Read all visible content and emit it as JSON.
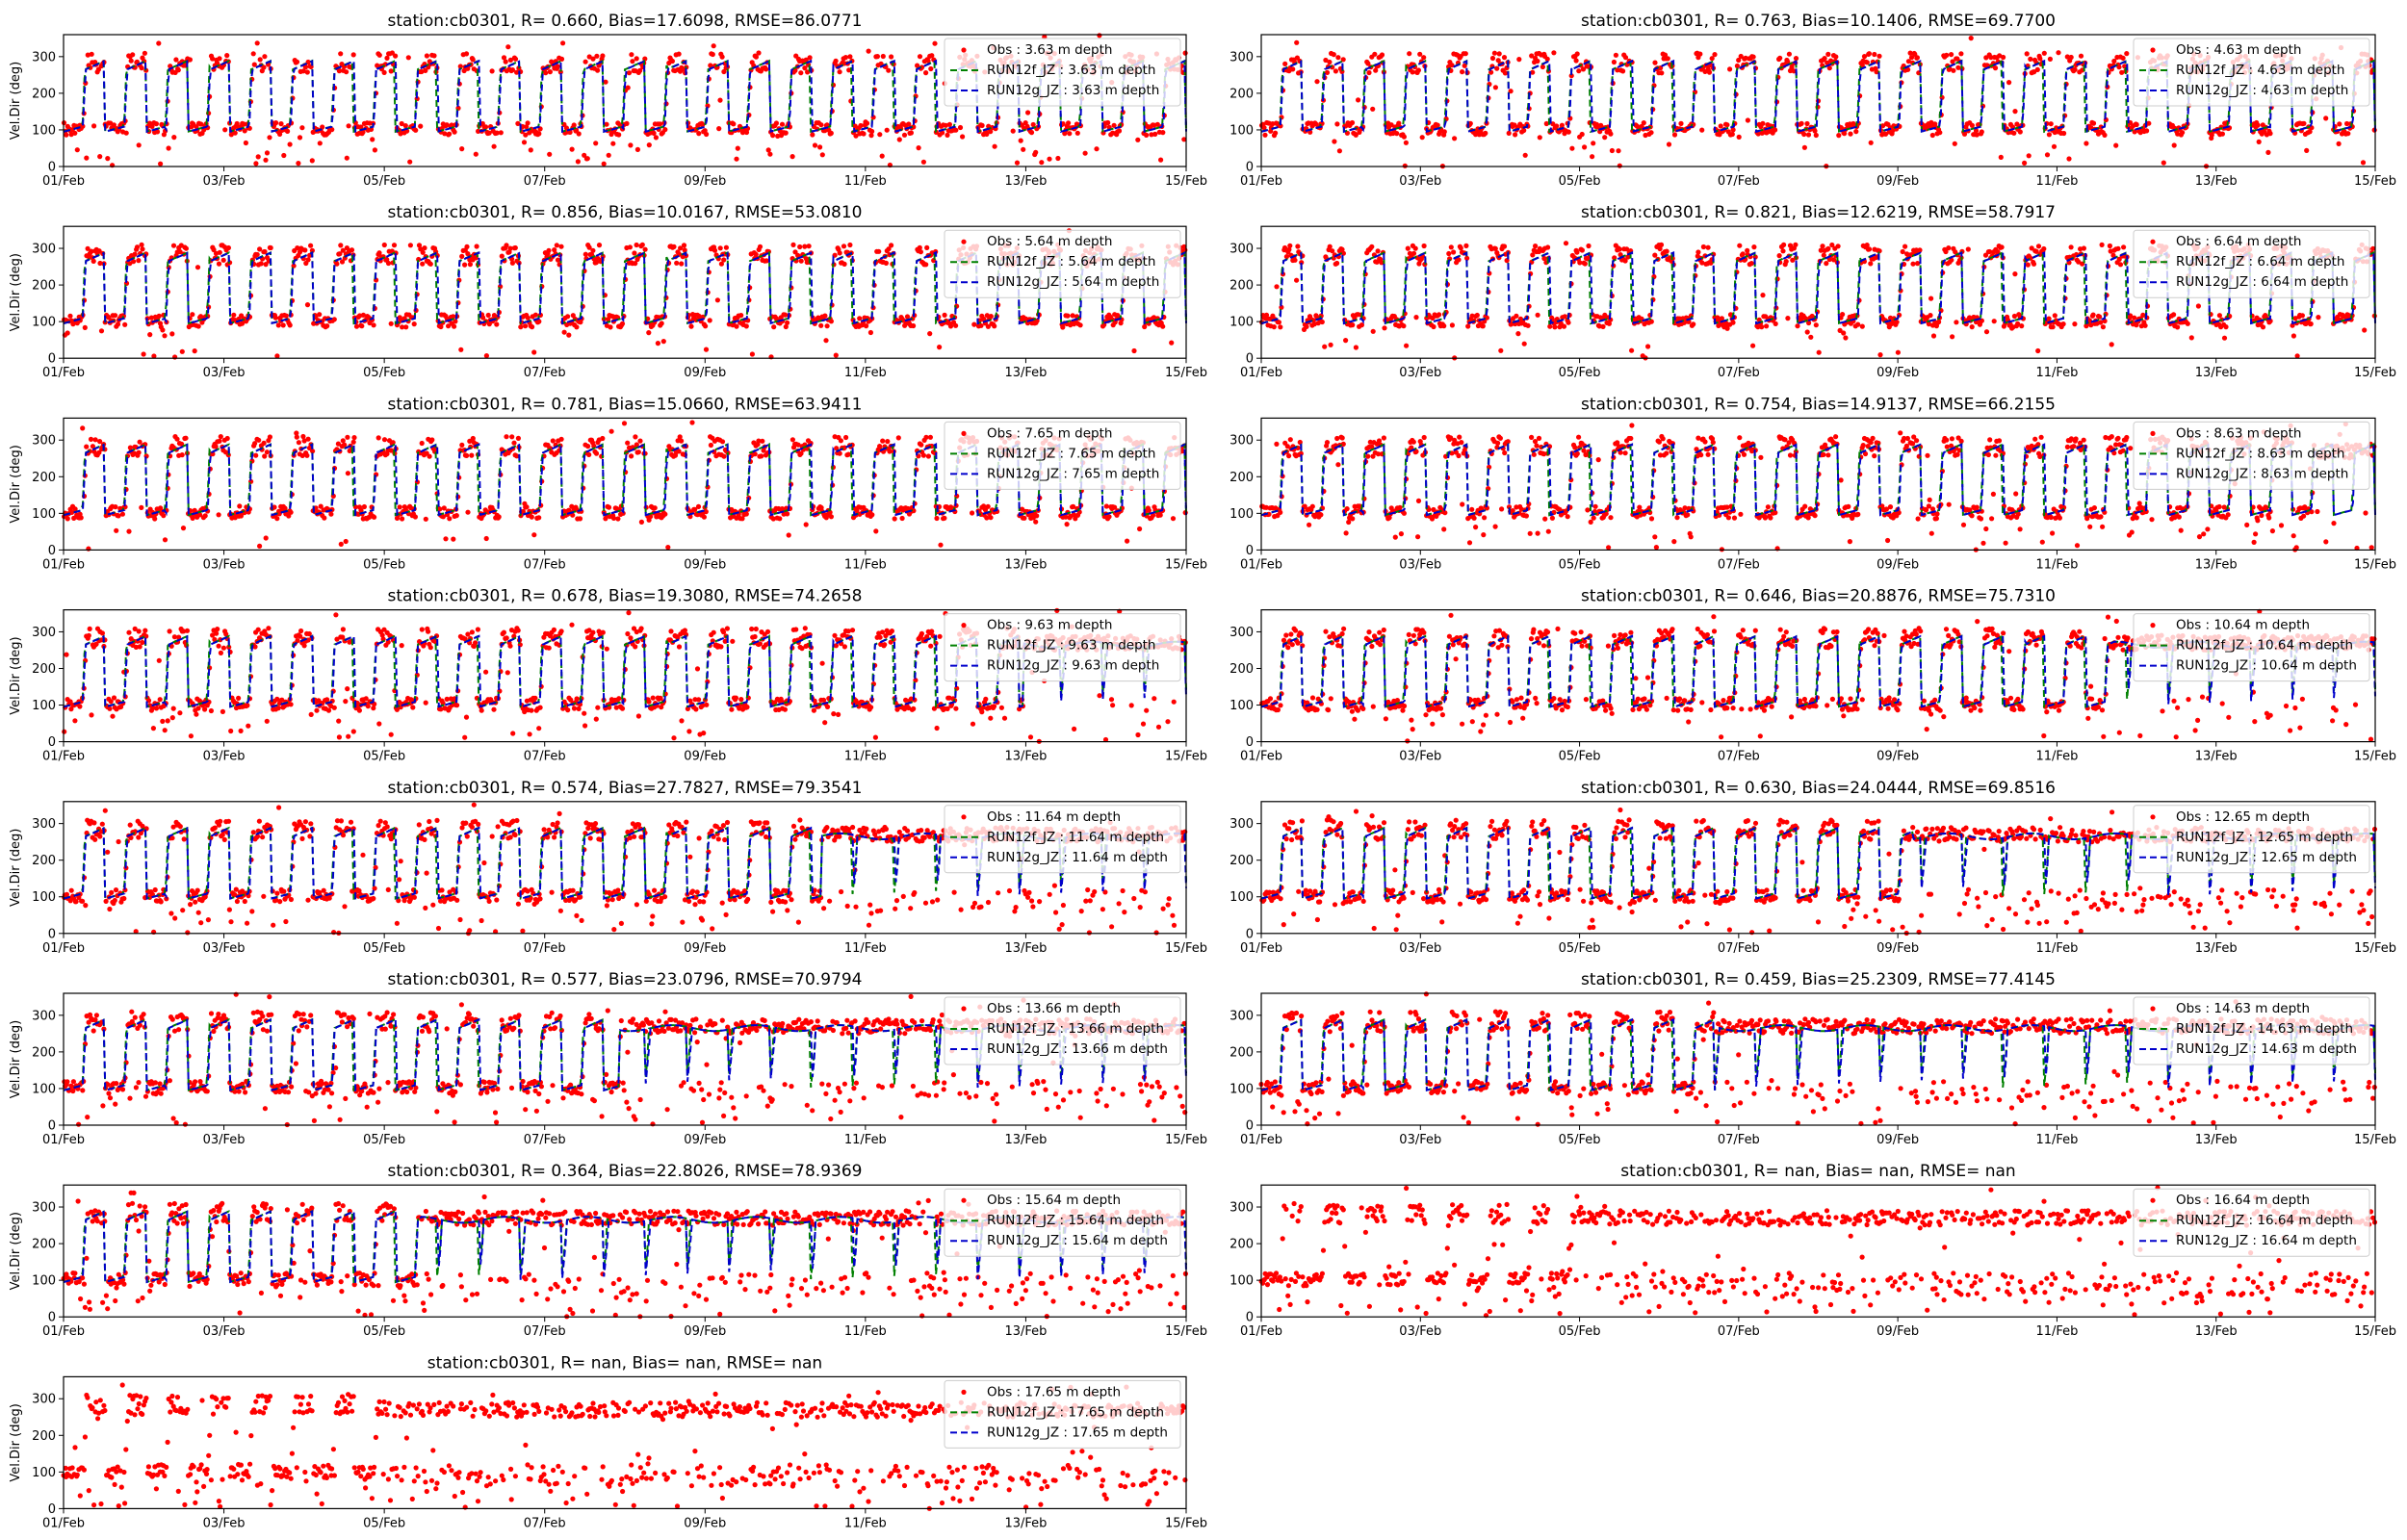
{
  "figure": {
    "ylabel": "Vel.Dir (deg)",
    "colors": {
      "obs": "#ff0000",
      "run12f": "#008000",
      "run12g": "#0000cc"
    }
  },
  "chart_data": [
    {
      "type": "scatter",
      "title": "station:cb0301, R= 0.660, Bias=17.6098, RMSE=86.0771",
      "depth": "3.63",
      "quality": "low",
      "xlabel": "",
      "ylabel": "Vel.Dir (deg)",
      "ylim": [
        0,
        360
      ],
      "yticks": [
        0,
        100,
        200,
        300
      ],
      "xlim": [
        "01/Feb",
        "15/Feb"
      ],
      "xticks": [
        "01/Feb",
        "03/Feb",
        "05/Feb",
        "07/Feb",
        "09/Feb",
        "11/Feb",
        "13/Feb",
        "15/Feb"
      ],
      "legend": {
        "position": "top-right",
        "entries": [
          "Obs : 3.63 m depth",
          "RUN12f_JZ : 3.63 m depth",
          "RUN12g_JZ : 3.63 m depth"
        ]
      },
      "series": [
        {
          "name": "Obs : 3.63 m depth",
          "kind": "points"
        },
        {
          "name": "RUN12f_JZ : 3.63 m depth",
          "kind": "dashed-line"
        },
        {
          "name": "RUN12g_JZ : 3.63 m depth",
          "kind": "dashed-line"
        }
      ]
    },
    {
      "type": "scatter",
      "title": "station:cb0301, R= 0.763, Bias=10.1406, RMSE=69.7700",
      "depth": "4.63",
      "quality": "mid",
      "xlabel": "",
      "ylabel": "",
      "ylim": [
        0,
        360
      ],
      "yticks": [
        0,
        100,
        200,
        300
      ],
      "xlim": [
        "01/Feb",
        "15/Feb"
      ],
      "xticks": [
        "01/Feb",
        "03/Feb",
        "05/Feb",
        "07/Feb",
        "09/Feb",
        "11/Feb",
        "13/Feb",
        "15/Feb"
      ],
      "legend": {
        "position": "top-right",
        "entries": [
          "Obs : 4.63 m depth",
          "RUN12f_JZ : 4.63 m depth",
          "RUN12g_JZ : 4.63 m depth"
        ]
      },
      "series": [
        {
          "name": "Obs : 4.63 m depth",
          "kind": "points"
        },
        {
          "name": "RUN12f_JZ : 4.63 m depth",
          "kind": "dashed-line"
        },
        {
          "name": "RUN12g_JZ : 4.63 m depth",
          "kind": "dashed-line"
        }
      ]
    },
    {
      "type": "scatter",
      "title": "station:cb0301, R= 0.856, Bias=10.0167, RMSE=53.0810",
      "depth": "5.64",
      "quality": "high",
      "xlabel": "",
      "ylabel": "Vel.Dir (deg)",
      "ylim": [
        0,
        360
      ],
      "yticks": [
        0,
        100,
        200,
        300
      ],
      "xlim": [
        "01/Feb",
        "15/Feb"
      ],
      "xticks": [
        "01/Feb",
        "03/Feb",
        "05/Feb",
        "07/Feb",
        "09/Feb",
        "11/Feb",
        "13/Feb",
        "15/Feb"
      ],
      "legend": {
        "position": "top-right",
        "entries": [
          "Obs : 5.64 m depth",
          "RUN12f_JZ : 5.64 m depth",
          "RUN12g_JZ : 5.64 m depth"
        ]
      },
      "series": [
        {
          "name": "Obs : 5.64 m depth",
          "kind": "points"
        },
        {
          "name": "RUN12f_JZ : 5.64 m depth",
          "kind": "dashed-line"
        },
        {
          "name": "RUN12g_JZ : 5.64 m depth",
          "kind": "dashed-line"
        }
      ]
    },
    {
      "type": "scatter",
      "title": "station:cb0301, R= 0.821, Bias=12.6219, RMSE=58.7917",
      "depth": "6.64",
      "quality": "high",
      "xlabel": "",
      "ylabel": "",
      "ylim": [
        0,
        360
      ],
      "yticks": [
        0,
        100,
        200,
        300
      ],
      "xlim": [
        "01/Feb",
        "15/Feb"
      ],
      "xticks": [
        "01/Feb",
        "03/Feb",
        "05/Feb",
        "07/Feb",
        "09/Feb",
        "11/Feb",
        "13/Feb",
        "15/Feb"
      ],
      "legend": {
        "position": "top-right",
        "entries": [
          "Obs : 6.64 m depth",
          "RUN12f_JZ : 6.64 m depth",
          "RUN12g_JZ : 6.64 m depth"
        ]
      },
      "series": [
        {
          "name": "Obs : 6.64 m depth",
          "kind": "points"
        },
        {
          "name": "RUN12f_JZ : 6.64 m depth",
          "kind": "dashed-line"
        },
        {
          "name": "RUN12g_JZ : 6.64 m depth",
          "kind": "dashed-line"
        }
      ]
    },
    {
      "type": "scatter",
      "title": "station:cb0301, R= 0.781, Bias=15.0660, RMSE=63.9411",
      "depth": "7.65",
      "quality": "high",
      "xlabel": "",
      "ylabel": "Vel.Dir (deg)",
      "ylim": [
        0,
        360
      ],
      "yticks": [
        0,
        100,
        200,
        300
      ],
      "xlim": [
        "01/Feb",
        "15/Feb"
      ],
      "xticks": [
        "01/Feb",
        "03/Feb",
        "05/Feb",
        "07/Feb",
        "09/Feb",
        "11/Feb",
        "13/Feb",
        "15/Feb"
      ],
      "legend": {
        "position": "top-right",
        "entries": [
          "Obs : 7.65 m depth",
          "RUN12f_JZ : 7.65 m depth",
          "RUN12g_JZ : 7.65 m depth"
        ]
      },
      "series": [
        {
          "name": "Obs : 7.65 m depth",
          "kind": "points"
        },
        {
          "name": "RUN12f_JZ : 7.65 m depth",
          "kind": "dashed-line"
        },
        {
          "name": "RUN12g_JZ : 7.65 m depth",
          "kind": "dashed-line"
        }
      ]
    },
    {
      "type": "scatter",
      "title": "station:cb0301, R= 0.754, Bias=14.9137, RMSE=66.2155",
      "depth": "8.63",
      "quality": "mid",
      "xlabel": "",
      "ylabel": "",
      "ylim": [
        0,
        360
      ],
      "yticks": [
        0,
        100,
        200,
        300
      ],
      "xlim": [
        "01/Feb",
        "15/Feb"
      ],
      "xticks": [
        "01/Feb",
        "03/Feb",
        "05/Feb",
        "07/Feb",
        "09/Feb",
        "11/Feb",
        "13/Feb",
        "15/Feb"
      ],
      "legend": {
        "position": "top-right",
        "entries": [
          "Obs : 8.63 m depth",
          "RUN12f_JZ : 8.63 m depth",
          "RUN12g_JZ : 8.63 m depth"
        ]
      },
      "series": [
        {
          "name": "Obs : 8.63 m depth",
          "kind": "points"
        },
        {
          "name": "RUN12f_JZ : 8.63 m depth",
          "kind": "dashed-line"
        },
        {
          "name": "RUN12g_JZ : 8.63 m depth",
          "kind": "dashed-line"
        }
      ]
    },
    {
      "type": "scatter",
      "title": "station:cb0301, R= 0.678, Bias=19.3080, RMSE=74.2658",
      "depth": "9.63",
      "quality": "mid",
      "xlabel": "",
      "ylabel": "Vel.Dir (deg)",
      "ylim": [
        0,
        360
      ],
      "yticks": [
        0,
        100,
        200,
        300
      ],
      "xlim": [
        "01/Feb",
        "15/Feb"
      ],
      "xticks": [
        "01/Feb",
        "03/Feb",
        "05/Feb",
        "07/Feb",
        "09/Feb",
        "11/Feb",
        "13/Feb",
        "15/Feb"
      ],
      "legend": {
        "position": "top-right",
        "entries": [
          "Obs : 9.63 m depth",
          "RUN12f_JZ : 9.63 m depth",
          "RUN12g_JZ : 9.63 m depth"
        ]
      },
      "series": [
        {
          "name": "Obs : 9.63 m depth",
          "kind": "points"
        },
        {
          "name": "RUN12f_JZ : 9.63 m depth",
          "kind": "dashed-line"
        },
        {
          "name": "RUN12g_JZ : 9.63 m depth",
          "kind": "dashed-line"
        }
      ]
    },
    {
      "type": "scatter",
      "title": "station:cb0301, R= 0.646, Bias=20.8876, RMSE=75.7310",
      "depth": "10.64",
      "quality": "mid",
      "xlabel": "",
      "ylabel": "",
      "ylim": [
        0,
        360
      ],
      "yticks": [
        0,
        100,
        200,
        300
      ],
      "xlim": [
        "01/Feb",
        "15/Feb"
      ],
      "xticks": [
        "01/Feb",
        "03/Feb",
        "05/Feb",
        "07/Feb",
        "09/Feb",
        "11/Feb",
        "13/Feb",
        "15/Feb"
      ],
      "legend": {
        "position": "top-right",
        "entries": [
          "Obs : 10.64 m depth",
          "RUN12f_JZ : 10.64 m depth",
          "RUN12g_JZ : 10.64 m depth"
        ]
      },
      "series": [
        {
          "name": "Obs : 10.64 m depth",
          "kind": "points"
        },
        {
          "name": "RUN12f_JZ : 10.64 m depth",
          "kind": "dashed-line"
        },
        {
          "name": "RUN12g_JZ : 10.64 m depth",
          "kind": "dashed-line"
        }
      ]
    },
    {
      "type": "scatter",
      "title": "station:cb0301, R= 0.574, Bias=27.7827, RMSE=79.3541",
      "depth": "11.64",
      "quality": "low",
      "xlabel": "",
      "ylabel": "Vel.Dir (deg)",
      "ylim": [
        0,
        360
      ],
      "yticks": [
        0,
        100,
        200,
        300
      ],
      "xlim": [
        "01/Feb",
        "15/Feb"
      ],
      "xticks": [
        "01/Feb",
        "03/Feb",
        "05/Feb",
        "07/Feb",
        "09/Feb",
        "11/Feb",
        "13/Feb",
        "15/Feb"
      ],
      "legend": {
        "position": "top-right",
        "entries": [
          "Obs : 11.64 m depth",
          "RUN12f_JZ : 11.64 m depth",
          "RUN12g_JZ : 11.64 m depth"
        ]
      },
      "series": [
        {
          "name": "Obs : 11.64 m depth",
          "kind": "points"
        },
        {
          "name": "RUN12f_JZ : 11.64 m depth",
          "kind": "dashed-line"
        },
        {
          "name": "RUN12g_JZ : 11.64 m depth",
          "kind": "dashed-line"
        }
      ]
    },
    {
      "type": "scatter",
      "title": "station:cb0301, R= 0.630, Bias=24.0444, RMSE=69.8516",
      "depth": "12.65",
      "quality": "low",
      "xlabel": "",
      "ylabel": "",
      "ylim": [
        0,
        360
      ],
      "yticks": [
        0,
        100,
        200,
        300
      ],
      "xlim": [
        "01/Feb",
        "15/Feb"
      ],
      "xticks": [
        "01/Feb",
        "03/Feb",
        "05/Feb",
        "07/Feb",
        "09/Feb",
        "11/Feb",
        "13/Feb",
        "15/Feb"
      ],
      "legend": {
        "position": "top-right",
        "entries": [
          "Obs : 12.65 m depth",
          "RUN12f_JZ : 12.65 m depth",
          "RUN12g_JZ : 12.65 m depth"
        ]
      },
      "series": [
        {
          "name": "Obs : 12.65 m depth",
          "kind": "points"
        },
        {
          "name": "RUN12f_JZ : 12.65 m depth",
          "kind": "dashed-line"
        },
        {
          "name": "RUN12g_JZ : 12.65 m depth",
          "kind": "dashed-line"
        }
      ]
    },
    {
      "type": "scatter",
      "title": "station:cb0301, R= 0.577, Bias=23.0796, RMSE=70.9794",
      "depth": "13.66",
      "quality": "low",
      "xlabel": "",
      "ylabel": "Vel.Dir (deg)",
      "ylim": [
        0,
        360
      ],
      "yticks": [
        0,
        100,
        200,
        300
      ],
      "xlim": [
        "01/Feb",
        "15/Feb"
      ],
      "xticks": [
        "01/Feb",
        "03/Feb",
        "05/Feb",
        "07/Feb",
        "09/Feb",
        "11/Feb",
        "13/Feb",
        "15/Feb"
      ],
      "legend": {
        "position": "top-right",
        "entries": [
          "Obs : 13.66 m depth",
          "RUN12f_JZ : 13.66 m depth",
          "RUN12g_JZ : 13.66 m depth"
        ]
      },
      "series": [
        {
          "name": "Obs : 13.66 m depth",
          "kind": "points"
        },
        {
          "name": "RUN12f_JZ : 13.66 m depth",
          "kind": "dashed-line"
        },
        {
          "name": "RUN12g_JZ : 13.66 m depth",
          "kind": "dashed-line"
        }
      ]
    },
    {
      "type": "scatter",
      "title": "station:cb0301, R= 0.459, Bias=25.2309, RMSE=77.4145",
      "depth": "14.63",
      "quality": "low",
      "xlabel": "",
      "ylabel": "",
      "ylim": [
        0,
        360
      ],
      "yticks": [
        0,
        100,
        200,
        300
      ],
      "xlim": [
        "01/Feb",
        "15/Feb"
      ],
      "xticks": [
        "01/Feb",
        "03/Feb",
        "05/Feb",
        "07/Feb",
        "09/Feb",
        "11/Feb",
        "13/Feb",
        "15/Feb"
      ],
      "legend": {
        "position": "top-right",
        "entries": [
          "Obs : 14.63 m depth",
          "RUN12f_JZ : 14.63 m depth",
          "RUN12g_JZ : 14.63 m depth"
        ]
      },
      "series": [
        {
          "name": "Obs : 14.63 m depth",
          "kind": "points"
        },
        {
          "name": "RUN12f_JZ : 14.63 m depth",
          "kind": "dashed-line"
        },
        {
          "name": "RUN12g_JZ : 14.63 m depth",
          "kind": "dashed-line"
        }
      ]
    },
    {
      "type": "scatter",
      "title": "station:cb0301, R= 0.364, Bias=22.8026, RMSE=78.9369",
      "depth": "15.64",
      "quality": "low",
      "xlabel": "",
      "ylabel": "Vel.Dir (deg)",
      "ylim": [
        0,
        360
      ],
      "yticks": [
        0,
        100,
        200,
        300
      ],
      "xlim": [
        "01/Feb",
        "15/Feb"
      ],
      "xticks": [
        "01/Feb",
        "03/Feb",
        "05/Feb",
        "07/Feb",
        "09/Feb",
        "11/Feb",
        "13/Feb",
        "15/Feb"
      ],
      "legend": {
        "position": "top-right",
        "entries": [
          "Obs : 15.64 m depth",
          "RUN12f_JZ : 15.64 m depth",
          "RUN12g_JZ : 15.64 m depth"
        ]
      },
      "series": [
        {
          "name": "Obs : 15.64 m depth",
          "kind": "points"
        },
        {
          "name": "RUN12f_JZ : 15.64 m depth",
          "kind": "dashed-line"
        },
        {
          "name": "RUN12g_JZ : 15.64 m depth",
          "kind": "dashed-line"
        }
      ]
    },
    {
      "type": "scatter",
      "title": "station:cb0301, R=   nan, Bias=   nan, RMSE=   nan",
      "depth": "16.64",
      "quality": "none",
      "xlabel": "",
      "ylabel": "",
      "ylim": [
        0,
        360
      ],
      "yticks": [
        0,
        100,
        200,
        300
      ],
      "xlim": [
        "01/Feb",
        "15/Feb"
      ],
      "xticks": [
        "01/Feb",
        "03/Feb",
        "05/Feb",
        "07/Feb",
        "09/Feb",
        "11/Feb",
        "13/Feb",
        "15/Feb"
      ],
      "legend": {
        "position": "top-right",
        "entries": [
          "Obs : 16.64 m depth",
          "RUN12f_JZ : 16.64 m depth",
          "RUN12g_JZ : 16.64 m depth"
        ]
      },
      "series": [
        {
          "name": "Obs : 16.64 m depth",
          "kind": "points"
        },
        {
          "name": "RUN12f_JZ : 16.64 m depth",
          "kind": "dashed-line"
        },
        {
          "name": "RUN12g_JZ : 16.64 m depth",
          "kind": "dashed-line"
        }
      ]
    },
    {
      "type": "scatter",
      "title": "station:cb0301, R=   nan, Bias=   nan, RMSE=   nan",
      "depth": "17.65",
      "quality": "none",
      "xlabel": "",
      "ylabel": "Vel.Dir (deg)",
      "ylim": [
        0,
        360
      ],
      "yticks": [
        0,
        100,
        200,
        300
      ],
      "xlim": [
        "01/Feb",
        "15/Feb"
      ],
      "xticks": [
        "01/Feb",
        "03/Feb",
        "05/Feb",
        "07/Feb",
        "09/Feb",
        "11/Feb",
        "13/Feb",
        "15/Feb"
      ],
      "legend": {
        "position": "top-right",
        "entries": [
          "Obs : 17.65 m depth",
          "RUN12f_JZ : 17.65 m depth",
          "RUN12g_JZ : 17.65 m depth"
        ]
      },
      "series": [
        {
          "name": "Obs : 17.65 m depth",
          "kind": "points"
        },
        {
          "name": "RUN12f_JZ : 17.65 m depth",
          "kind": "dashed-line"
        },
        {
          "name": "RUN12g_JZ : 17.65 m depth",
          "kind": "dashed-line"
        }
      ]
    }
  ]
}
